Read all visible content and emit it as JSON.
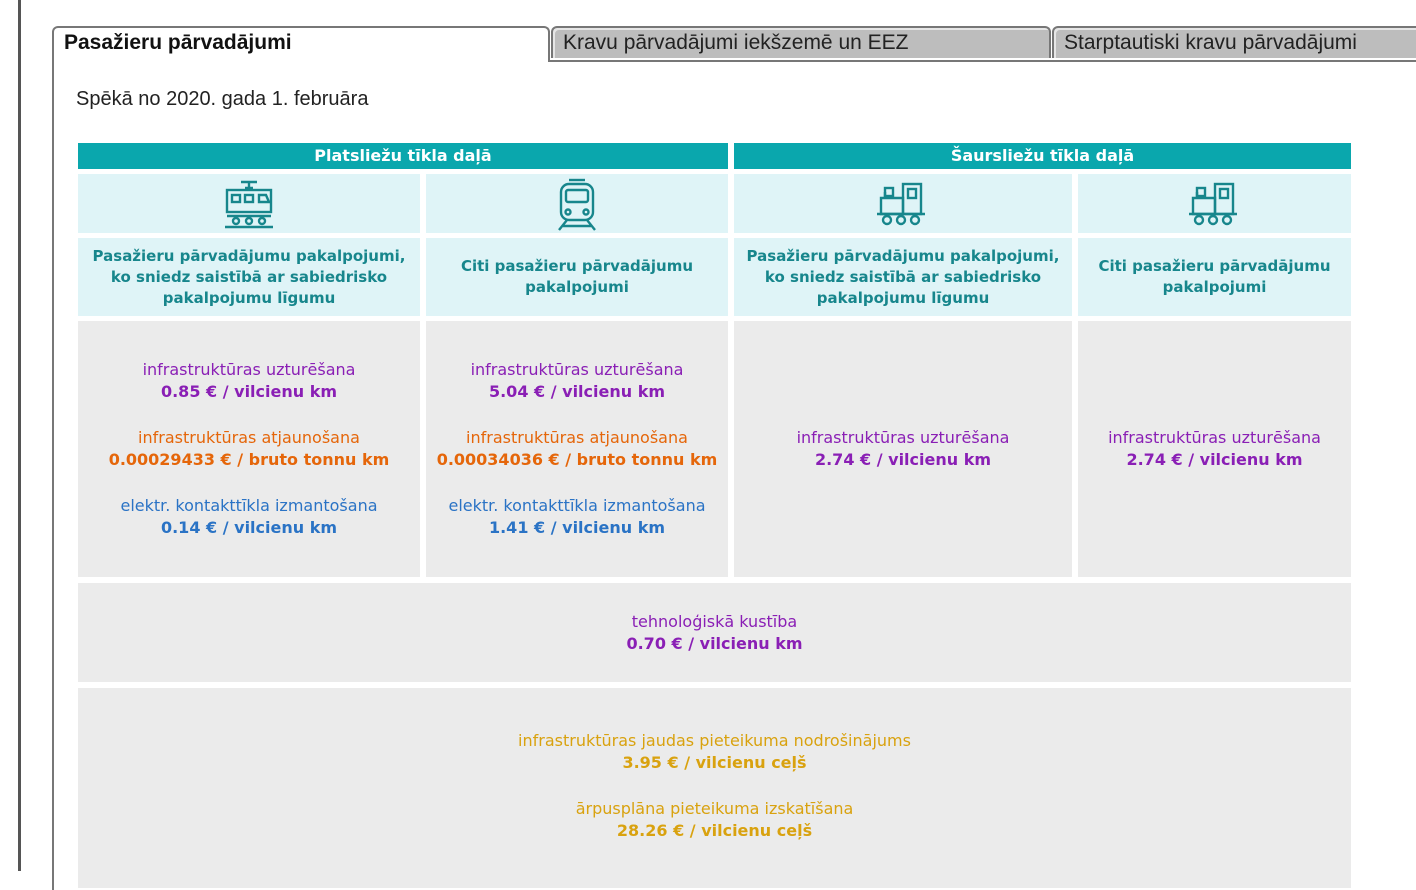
{
  "tabs": [
    {
      "label": "Pasažieru pārvadājumi"
    },
    {
      "label": "Kravu pārvadājumi iekšzemē un EEZ"
    },
    {
      "label": "Starptautiski kravu pārvadājumi"
    }
  ],
  "effective_date": "Spēkā no 2020. gada  1. februāra",
  "sections": {
    "wide": "Platsliežu tīkla daļā",
    "narrow": "Šaursliežu tīkla daļā"
  },
  "icons": [
    "electric-train-icon",
    "passenger-train-icon",
    "narrow-gauge-locomotive-icon",
    "narrow-gauge-locomotive-icon"
  ],
  "columns": [
    {
      "desc": "Pasažieru pārvadājumu pakalpojumi, ko sniedz saistībā ar sabiedrisko pakalpojumu līgumu",
      "items": [
        {
          "label": "infrastruktūras uzturēšana",
          "value": "0.85 € / vilcienu km",
          "color": "#8a1fb5"
        },
        {
          "label": "infrastruktūras atjaunošana",
          "value": "0.00029433 € / bruto tonnu km",
          "color": "#e5660a"
        },
        {
          "label": "elektr. kontakttīkla izmantošana",
          "value": "0.14 € / vilcienu km",
          "color": "#2a73c5"
        }
      ]
    },
    {
      "desc": "Citi pasažieru pārvadājumu pakalpojumi",
      "items": [
        {
          "label": "infrastruktūras uzturēšana",
          "value": "5.04 € / vilcienu km",
          "color": "#8a1fb5"
        },
        {
          "label": "infrastruktūras atjaunošana",
          "value": "0.00034036 € / bruto tonnu km",
          "color": "#e5660a"
        },
        {
          "label": "elektr. kontakttīkla izmantošana",
          "value": "1.41 € / vilcienu km",
          "color": "#2a73c5"
        }
      ]
    },
    {
      "desc": "Pasažieru pārvadājumu pakalpojumi, ko sniedz saistībā ar sabiedrisko pakalpojumu līgumu",
      "items": [
        {
          "label": "infrastruktūras uzturēšana",
          "value": "2.74 € / vilcienu km",
          "color": "#8a1fb5"
        }
      ]
    },
    {
      "desc": "Citi pasažieru pārvadājumu pakalpojumi",
      "items": [
        {
          "label": "infrastruktūras uzturēšana",
          "value": "2.74 € / vilcienu km",
          "color": "#8a1fb5"
        }
      ]
    }
  ],
  "tech": {
    "label": "tehnoloģiskā kustība",
    "value": "0.70 € / vilcienu km",
    "color": "#8a1fb5"
  },
  "bottom": [
    {
      "label": "infrastruktūras jaudas pieteikuma nodrošinājums",
      "value": "3.95 € / vilcienu ceļš",
      "color": "#d9a20f"
    },
    {
      "label": "ārpusplāna pieteikuma izskatīšana",
      "value": "28.26 € / vilcienu ceļš",
      "color": "#d9a20f"
    }
  ]
}
